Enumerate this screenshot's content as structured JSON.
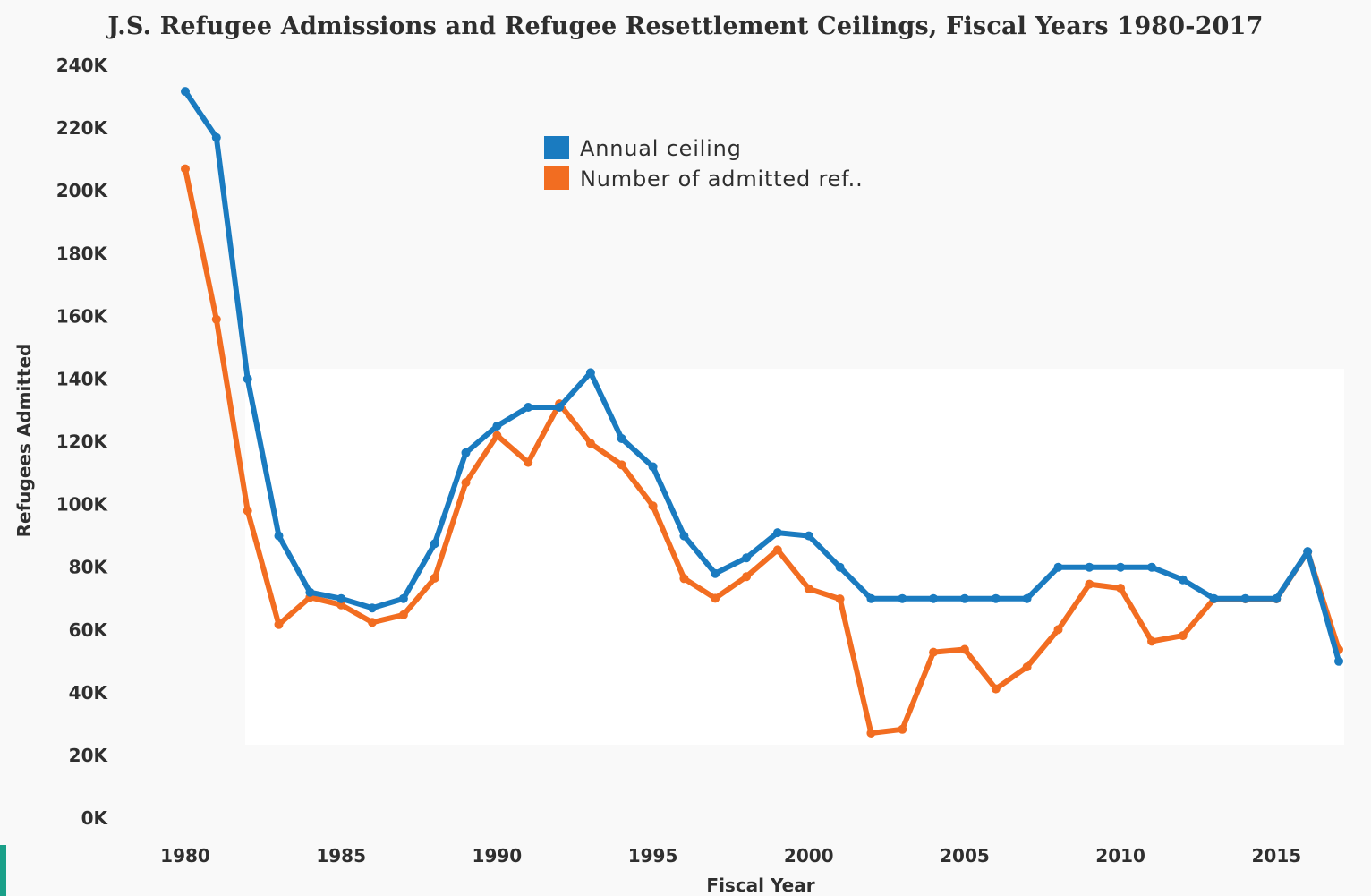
{
  "title": "J.S. Refugee Admissions and Refugee Resettlement Ceilings, Fiscal Years 1980-2017",
  "chart_data": {
    "type": "line",
    "xlabel": "Fiscal Year",
    "ylabel": "Refugees Admitted",
    "xlim": [
      1980,
      2017
    ],
    "ylim": [
      0,
      240000
    ],
    "x_ticks": [
      "1980",
      "1985",
      "1990",
      "1995",
      "2000",
      "2005",
      "2010",
      "2015"
    ],
    "y_ticks": [
      "0K",
      "20K",
      "40K",
      "60K",
      "80K",
      "100K",
      "120K",
      "140K",
      "160K",
      "180K",
      "200K",
      "220K",
      "240K"
    ],
    "legend_position": "top-center",
    "x": [
      1980,
      1981,
      1982,
      1983,
      1984,
      1985,
      1986,
      1987,
      1988,
      1989,
      1990,
      1991,
      1992,
      1993,
      1994,
      1995,
      1996,
      1997,
      1998,
      1999,
      2000,
      2001,
      2002,
      2003,
      2004,
      2005,
      2006,
      2007,
      2008,
      2009,
      2010,
      2011,
      2012,
      2013,
      2014,
      2015,
      2016,
      2017
    ],
    "series": [
      {
        "name": "Annual ceiling",
        "color": "#1a7bc0",
        "values": [
          231700,
          217000,
          140000,
          90000,
          72000,
          70000,
          67000,
          70000,
          87500,
          116500,
          125000,
          131000,
          131000,
          142000,
          121000,
          112000,
          90000,
          78000,
          83000,
          91000,
          90000,
          80000,
          70000,
          70000,
          70000,
          70000,
          70000,
          70000,
          80000,
          80000,
          80000,
          80000,
          76000,
          70000,
          70000,
          70000,
          85000,
          50000
        ]
      },
      {
        "name": "Number of admitted ref..",
        "color": "#f26d21",
        "values": [
          207000,
          159000,
          98000,
          61700,
          70400,
          68000,
          62400,
          64800,
          76500,
          107000,
          122000,
          113400,
          132100,
          119500,
          112600,
          99500,
          76400,
          70100,
          77000,
          85500,
          73100,
          69900,
          27100,
          28300,
          52900,
          53800,
          41200,
          48200,
          60100,
          74600,
          73300,
          56400,
          58200,
          69900,
          69900,
          69900,
          84900,
          53700
        ]
      }
    ]
  }
}
